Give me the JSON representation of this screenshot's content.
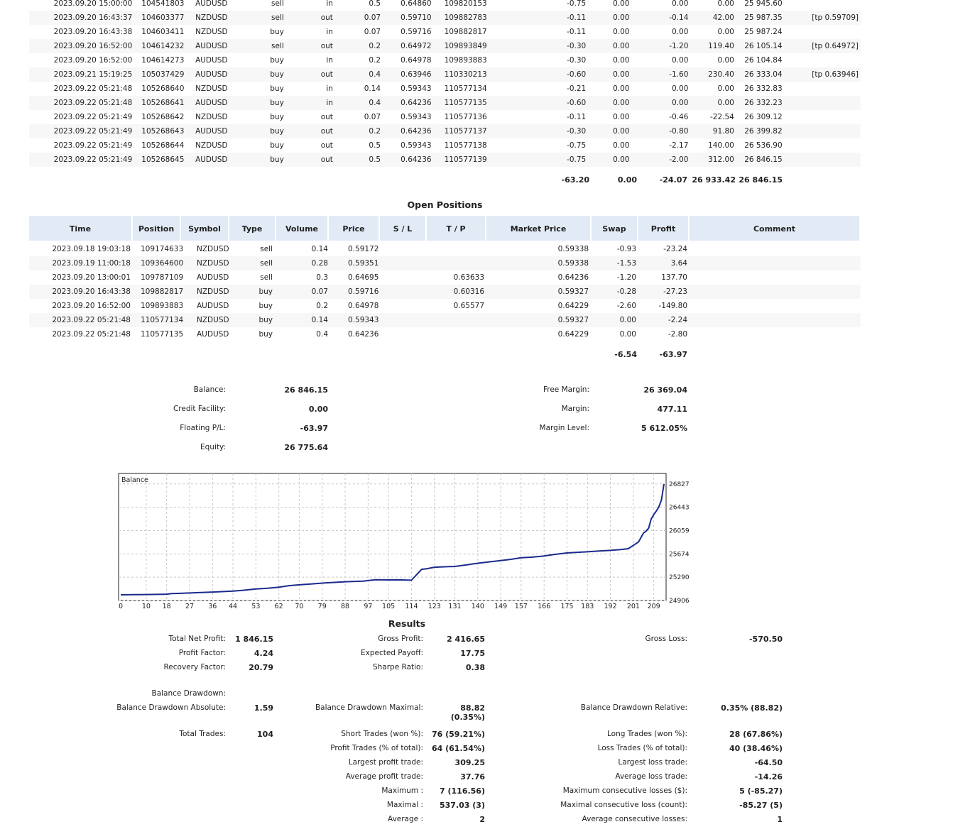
{
  "deals": {
    "rows": [
      {
        "time": "2023.09.20 15:00:00",
        "deal": "104541803",
        "symbol": "AUDUSD",
        "type": "sell",
        "dir": "in",
        "volume": "0.5",
        "price": "0.64860",
        "order": "109820153",
        "commission": "-0.75",
        "swap": "0.00",
        "profit": "0.00",
        "balance_amount": "0.00",
        "balance": "25 945.60",
        "comment": ""
      },
      {
        "time": "2023.09.20 16:43:37",
        "deal": "104603377",
        "symbol": "NZDUSD",
        "type": "sell",
        "dir": "out",
        "volume": "0.07",
        "price": "0.59710",
        "order": "109882783",
        "commission": "-0.11",
        "swap": "0.00",
        "profit": "-0.14",
        "balance_amount": "42.00",
        "balance": "25 987.35",
        "comment": "[tp 0.59709]"
      },
      {
        "time": "2023.09.20 16:43:38",
        "deal": "104603411",
        "symbol": "NZDUSD",
        "type": "buy",
        "dir": "in",
        "volume": "0.07",
        "price": "0.59716",
        "order": "109882817",
        "commission": "-0.11",
        "swap": "0.00",
        "profit": "0.00",
        "balance_amount": "0.00",
        "balance": "25 987.24",
        "comment": ""
      },
      {
        "time": "2023.09.20 16:52:00",
        "deal": "104614232",
        "symbol": "AUDUSD",
        "type": "sell",
        "dir": "out",
        "volume": "0.2",
        "price": "0.64972",
        "order": "109893849",
        "commission": "-0.30",
        "swap": "0.00",
        "profit": "-1.20",
        "balance_amount": "119.40",
        "balance": "26 105.14",
        "comment": "[tp 0.64972]"
      },
      {
        "time": "2023.09.20 16:52:00",
        "deal": "104614273",
        "symbol": "AUDUSD",
        "type": "buy",
        "dir": "in",
        "volume": "0.2",
        "price": "0.64978",
        "order": "109893883",
        "commission": "-0.30",
        "swap": "0.00",
        "profit": "0.00",
        "balance_amount": "0.00",
        "balance": "26 104.84",
        "comment": ""
      },
      {
        "time": "2023.09.21 15:19:25",
        "deal": "105037429",
        "symbol": "AUDUSD",
        "type": "buy",
        "dir": "out",
        "volume": "0.4",
        "price": "0.63946",
        "order": "110330213",
        "commission": "-0.60",
        "swap": "0.00",
        "profit": "-1.60",
        "balance_amount": "230.40",
        "balance": "26 333.04",
        "comment": "[tp 0.63946]"
      },
      {
        "time": "2023.09.22 05:21:48",
        "deal": "105268640",
        "symbol": "NZDUSD",
        "type": "buy",
        "dir": "in",
        "volume": "0.14",
        "price": "0.59343",
        "order": "110577134",
        "commission": "-0.21",
        "swap": "0.00",
        "profit": "0.00",
        "balance_amount": "0.00",
        "balance": "26 332.83",
        "comment": ""
      },
      {
        "time": "2023.09.22 05:21:48",
        "deal": "105268641",
        "symbol": "AUDUSD",
        "type": "buy",
        "dir": "in",
        "volume": "0.4",
        "price": "0.64236",
        "order": "110577135",
        "commission": "-0.60",
        "swap": "0.00",
        "profit": "0.00",
        "balance_amount": "0.00",
        "balance": "26 332.23",
        "comment": ""
      },
      {
        "time": "2023.09.22 05:21:49",
        "deal": "105268642",
        "symbol": "NZDUSD",
        "type": "buy",
        "dir": "out",
        "volume": "0.07",
        "price": "0.59343",
        "order": "110577136",
        "commission": "-0.11",
        "swap": "0.00",
        "profit": "-0.46",
        "balance_amount": "-22.54",
        "balance": "26 309.12",
        "comment": ""
      },
      {
        "time": "2023.09.22 05:21:49",
        "deal": "105268643",
        "symbol": "AUDUSD",
        "type": "buy",
        "dir": "out",
        "volume": "0.2",
        "price": "0.64236",
        "order": "110577137",
        "commission": "-0.30",
        "swap": "0.00",
        "profit": "-0.80",
        "balance_amount": "91.80",
        "balance": "26 399.82",
        "comment": ""
      },
      {
        "time": "2023.09.22 05:21:49",
        "deal": "105268644",
        "symbol": "NZDUSD",
        "type": "buy",
        "dir": "out",
        "volume": "0.5",
        "price": "0.59343",
        "order": "110577138",
        "commission": "-0.75",
        "swap": "0.00",
        "profit": "-2.17",
        "balance_amount": "140.00",
        "balance": "26 536.90",
        "comment": ""
      },
      {
        "time": "2023.09.22 05:21:49",
        "deal": "105268645",
        "symbol": "AUDUSD",
        "type": "buy",
        "dir": "out",
        "volume": "0.5",
        "price": "0.64236",
        "order": "110577139",
        "commission": "-0.75",
        "swap": "0.00",
        "profit": "-2.00",
        "balance_amount": "312.00",
        "balance": "26 846.15",
        "comment": ""
      }
    ],
    "totals": {
      "commission": "-63.20",
      "swap": "0.00",
      "profit": "-24.07",
      "balance_amount": "26 933.42",
      "balance": "26 846.15"
    }
  },
  "open_positions": {
    "title": "Open Positions",
    "headers": [
      "Time",
      "Position",
      "Symbol",
      "Type",
      "Volume",
      "Price",
      "S / L",
      "T / P",
      "Market Price",
      "Swap",
      "Profit",
      "Comment"
    ],
    "rows": [
      {
        "time": "2023.09.18 19:03:18",
        "position": "109174633",
        "symbol": "NZDUSD",
        "type": "sell",
        "volume": "0.14",
        "price": "0.59172",
        "sl": "",
        "tp": "",
        "market": "0.59338",
        "swap": "-0.93",
        "profit": "-23.24",
        "comment": ""
      },
      {
        "time": "2023.09.19 11:00:18",
        "position": "109364600",
        "symbol": "NZDUSD",
        "type": "sell",
        "volume": "0.28",
        "price": "0.59351",
        "sl": "",
        "tp": "",
        "market": "0.59338",
        "swap": "-1.53",
        "profit": "3.64",
        "comment": ""
      },
      {
        "time": "2023.09.20 13:00:01",
        "position": "109787109",
        "symbol": "AUDUSD",
        "type": "sell",
        "volume": "0.3",
        "price": "0.64695",
        "sl": "",
        "tp": "0.63633",
        "market": "0.64236",
        "swap": "-1.20",
        "profit": "137.70",
        "comment": ""
      },
      {
        "time": "2023.09.20 16:43:38",
        "position": "109882817",
        "symbol": "NZDUSD",
        "type": "buy",
        "volume": "0.07",
        "price": "0.59716",
        "sl": "",
        "tp": "0.60316",
        "market": "0.59327",
        "swap": "-0.28",
        "profit": "-27.23",
        "comment": ""
      },
      {
        "time": "2023.09.20 16:52:00",
        "position": "109893883",
        "symbol": "AUDUSD",
        "type": "buy",
        "volume": "0.2",
        "price": "0.64978",
        "sl": "",
        "tp": "0.65577",
        "market": "0.64229",
        "swap": "-2.60",
        "profit": "-149.80",
        "comment": ""
      },
      {
        "time": "2023.09.22 05:21:48",
        "position": "110577134",
        "symbol": "NZDUSD",
        "type": "buy",
        "volume": "0.14",
        "price": "0.59343",
        "sl": "",
        "tp": "",
        "market": "0.59327",
        "swap": "0.00",
        "profit": "-2.24",
        "comment": ""
      },
      {
        "time": "2023.09.22 05:21:48",
        "position": "110577135",
        "symbol": "AUDUSD",
        "type": "buy",
        "volume": "0.4",
        "price": "0.64236",
        "sl": "",
        "tp": "",
        "market": "0.64229",
        "swap": "0.00",
        "profit": "-2.80",
        "comment": ""
      }
    ],
    "totals": {
      "swap": "-6.54",
      "profit": "-63.97"
    }
  },
  "account": {
    "balance_label": "Balance:",
    "balance": "26 846.15",
    "credit_label": "Credit Facility:",
    "credit": "0.00",
    "floating_label": "Floating P/L:",
    "floating": "-63.97",
    "equity_label": "Equity:",
    "equity": "26 775.64",
    "free_margin_label": "Free Margin:",
    "free_margin": "26 369.04",
    "margin_label": "Margin:",
    "margin": "477.11",
    "margin_level_label": "Margin Level:",
    "margin_level": "5 612.05%"
  },
  "chart_data": {
    "type": "line",
    "title": "Balance",
    "x_ticks": [
      "0",
      "10",
      "18",
      "27",
      "36",
      "44",
      "53",
      "62",
      "70",
      "79",
      "88",
      "97",
      "105",
      "114",
      "123",
      "131",
      "140",
      "149",
      "157",
      "166",
      "175",
      "183",
      "192",
      "201",
      "209"
    ],
    "y_ticks": [
      "26827",
      "26443",
      "26059",
      "25674",
      "25290",
      "24906"
    ],
    "xlim": [
      0,
      213
    ],
    "ylim": [
      24906,
      27000
    ],
    "series": [
      {
        "color": "#1a2a8c",
        "points": [
          [
            0,
            25000
          ],
          [
            5,
            25002
          ],
          [
            10,
            25004
          ],
          [
            18,
            25010
          ],
          [
            20,
            25020
          ],
          [
            27,
            25030
          ],
          [
            36,
            25045
          ],
          [
            44,
            25060
          ],
          [
            48,
            25075
          ],
          [
            53,
            25095
          ],
          [
            58,
            25110
          ],
          [
            62,
            25125
          ],
          [
            66,
            25150
          ],
          [
            70,
            25165
          ],
          [
            75,
            25180
          ],
          [
            80,
            25195
          ],
          [
            88,
            25215
          ],
          [
            95,
            25225
          ],
          [
            97,
            25235
          ],
          [
            100,
            25248
          ],
          [
            105,
            25245
          ],
          [
            110,
            25245
          ],
          [
            114,
            25240
          ],
          [
            118,
            25420
          ],
          [
            120,
            25430
          ],
          [
            123,
            25455
          ],
          [
            127,
            25462
          ],
          [
            131,
            25468
          ],
          [
            135,
            25490
          ],
          [
            140,
            25520
          ],
          [
            145,
            25545
          ],
          [
            149,
            25565
          ],
          [
            153,
            25585
          ],
          [
            157,
            25610
          ],
          [
            161,
            25620
          ],
          [
            166,
            25640
          ],
          [
            170,
            25665
          ],
          [
            175,
            25690
          ],
          [
            179,
            25700
          ],
          [
            183,
            25708
          ],
          [
            187,
            25720
          ],
          [
            192,
            25732
          ],
          [
            196,
            25745
          ],
          [
            199,
            25760
          ],
          [
            201,
            25815
          ],
          [
            203,
            25870
          ],
          [
            205,
            26020
          ],
          [
            206,
            26050
          ],
          [
            207,
            26100
          ],
          [
            208,
            26250
          ],
          [
            209,
            26320
          ],
          [
            210,
            26380
          ],
          [
            211,
            26450
          ],
          [
            212,
            26560
          ],
          [
            213,
            26827
          ]
        ]
      }
    ]
  },
  "results": {
    "title": "Results",
    "net_profit_label": "Total Net Profit:",
    "net_profit": "1 846.15",
    "gross_profit_label": "Gross Profit:",
    "gross_profit": "2 416.65",
    "gross_loss_label": "Gross Loss:",
    "gross_loss": "-570.50",
    "profit_factor_label": "Profit Factor:",
    "profit_factor": "4.24",
    "expected_payoff_label": "Expected Payoff:",
    "expected_payoff": "17.75",
    "recovery_factor_label": "Recovery Factor:",
    "recovery_factor": "20.79",
    "sharpe_label": "Sharpe Ratio:",
    "sharpe": "0.38",
    "balance_dd_label": "Balance Drawdown:",
    "bdd_abs_label": "Balance Drawdown Absolute:",
    "bdd_abs": "1.59",
    "bdd_max_label": "Balance Drawdown Maximal:",
    "bdd_max": "88.82 (0.35%)",
    "bdd_rel_label": "Balance Drawdown Relative:",
    "bdd_rel": "0.35% (88.82)",
    "total_trades_label": "Total Trades:",
    "total_trades": "104",
    "short_label": "Short Trades (won %):",
    "short": "76 (59.21%)",
    "long_label": "Long Trades (won %):",
    "long": "28 (67.86%)",
    "profit_trades_label": "Profit Trades (% of total):",
    "profit_trades": "64 (61.54%)",
    "loss_trades_label": "Loss Trades (% of total):",
    "loss_trades": "40 (38.46%)",
    "largest_profit_label": "Largest profit trade:",
    "largest_profit": "309.25",
    "largest_loss_label": "Largest loss trade:",
    "largest_loss": "-64.50",
    "avg_profit_label": "Average profit trade:",
    "avg_profit": "37.76",
    "avg_loss_label": "Average loss trade:",
    "avg_loss": "-14.26",
    "maximum_label": "Maximum :",
    "maximum": "7 (116.56)",
    "max_consec_losses_label": "Maximum consecutive losses ($):",
    "max_consec_losses": "5 (-85.27)",
    "maximal_label": "Maximal :",
    "maximal": "537.03 (3)",
    "maximal_consec_loss_label": "Maximal consecutive loss (count):",
    "maximal_consec_loss": "-85.27 (5)",
    "average_label": "Average :",
    "average": "2",
    "avg_consec_losses_label": "Average consecutive losses:",
    "avg_consec_losses": "1"
  }
}
